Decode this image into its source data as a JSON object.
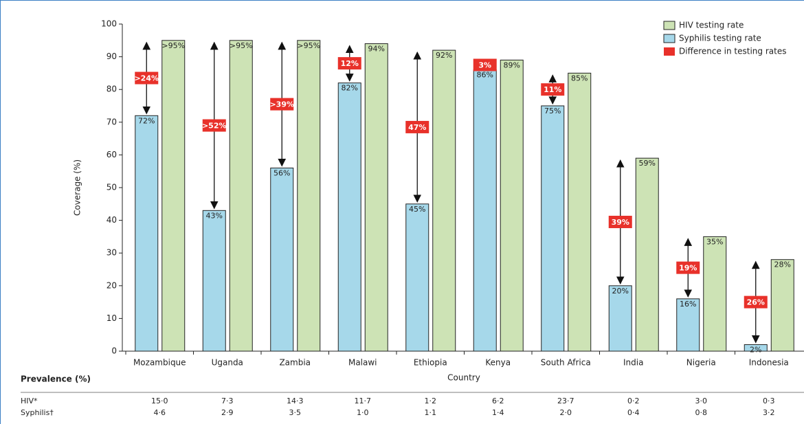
{
  "chart_data": {
    "type": "bar",
    "xlabel": "Country",
    "ylabel": "Coverage (%)",
    "categories": [
      "Mozambique",
      "Uganda",
      "Zambia",
      "Malawi",
      "Ethiopia",
      "Kenya",
      "South Africa",
      "India",
      "Nigeria",
      "Indonesia"
    ],
    "series": [
      {
        "name": "Syphilis testing rate",
        "color": "#a6d8ea",
        "values": [
          72,
          43,
          56,
          82,
          45,
          86,
          75,
          20,
          16,
          2
        ],
        "value_labels": [
          "72%",
          "43%",
          "56%",
          "82%",
          "45%",
          "86%",
          "75%",
          "20%",
          "16%",
          "2%"
        ]
      },
      {
        "name": "HIV testing rate",
        "color": "#cde3b5",
        "values": [
          95,
          95,
          95,
          94,
          92,
          89,
          85,
          59,
          35,
          28
        ],
        "value_labels": [
          ">95%",
          ">95%",
          ">95%",
          "94%",
          "92%",
          "89%",
          "85%",
          "59%",
          "35%",
          "28%"
        ]
      },
      {
        "name": "Difference in testing rates",
        "color": "#e8312a",
        "values": [
          24,
          52,
          39,
          12,
          47,
          3,
          11,
          39,
          19,
          26
        ],
        "value_labels": [
          ">24%",
          ">52%",
          ">39%",
          "12%",
          "47%",
          "3%",
          "11%",
          "39%",
          "19%",
          "26%"
        ]
      }
    ],
    "ylim": [
      0,
      100
    ],
    "yticks": [
      0,
      10,
      20,
      30,
      40,
      50,
      60,
      70,
      80,
      90,
      100
    ],
    "legend": "top-right"
  },
  "table": {
    "title": "Prevalence (%)",
    "rows": [
      {
        "label": "HIV*",
        "values": [
          "15·0",
          "7·3",
          "14·3",
          "11·7",
          "1·2",
          "6·2",
          "23·7",
          "0·2",
          "3·0",
          "0·3"
        ]
      },
      {
        "label": "Syphilis†",
        "values": [
          "4·6",
          "2·9",
          "3·5",
          "1·0",
          "1·1",
          "1·4",
          "2·0",
          "0·4",
          "0·8",
          "3·2"
        ]
      }
    ]
  }
}
